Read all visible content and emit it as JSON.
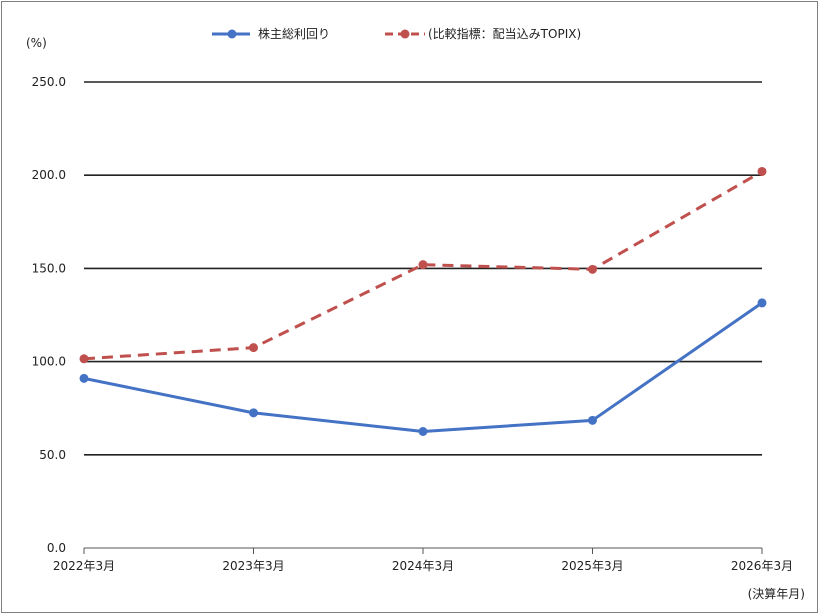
{
  "chart_data": {
    "type": "line",
    "y_unit_label": "(%)",
    "x_unit_label": "(決算年月)",
    "categories": [
      "2022年3月",
      "2023年3月",
      "2024年3月",
      "2025年3月",
      "2026年3月"
    ],
    "ylim": [
      0,
      250
    ],
    "yticks": [
      "0.0",
      "50.0",
      "100.0",
      "150.0",
      "200.0",
      "250.0"
    ],
    "ytick_values": [
      0,
      50,
      100,
      150,
      200,
      250
    ],
    "grid": true,
    "legend_position": "top-center",
    "series": [
      {
        "name": "株主総利回り",
        "values": [
          91,
          72.5,
          62.5,
          68.5,
          131.5
        ],
        "color": "#4472c4",
        "style": "solid"
      },
      {
        "name": "(比較指標：配当込みTOPIX)",
        "values": [
          101.5,
          107.5,
          152,
          149.5,
          202
        ],
        "color": "#c0504d",
        "style": "dashed"
      }
    ]
  }
}
